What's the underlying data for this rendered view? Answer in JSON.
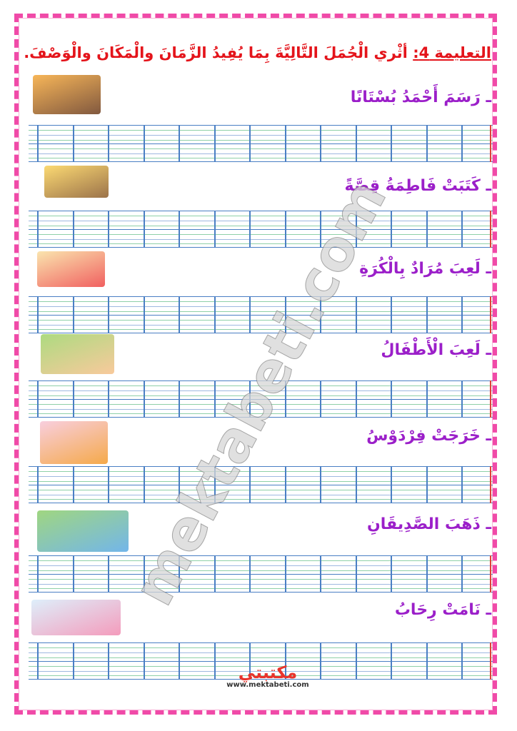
{
  "instruction": {
    "label": "التعليمة 4:",
    "text": " أثْري الْجُمَلَ التَّالِيَّةَ بِمَا يُفِيدُ الزَّمَانَ والْمَكَانَ والْوَصْفَ."
  },
  "sentences": [
    {
      "text": "ـ رَسَمَ أَحْمَدُ بُسْتَانًا",
      "picture": "boy-at-computer"
    },
    {
      "text": "ـ كَتَبَتْ فَاطِمَةُ قِصَّةً",
      "picture": "girl-writing"
    },
    {
      "text": "ـ لَعِبَ مُرَادٌ بِالْكُرَةِ",
      "picture": "boy-with-ball"
    },
    {
      "text": "ـ لَعِبَ الْأَطْفَالُ",
      "picture": "children-playing"
    },
    {
      "text": "ـ خَرَجَتْ فِرْدَوْسُ",
      "picture": "girl-walking"
    },
    {
      "text": "ـ ذَهَبَ الصَّدِيقَانِ",
      "picture": "two-friends-in-park"
    },
    {
      "text": "ـ نَامَتْ رِحَابُ",
      "picture": "girl-sleeping"
    }
  ],
  "watermark": "mektabeti.com",
  "footer": {
    "brand": "مكتبتي",
    "url": "www.mektabeti.com"
  },
  "colors": {
    "border": "#f04aa8",
    "title": "#e4141b",
    "sentence": "#9b1fc9",
    "grid_blue": "#4a7fc4",
    "grid_green": "#8fd0a8",
    "margin_red": "#e0403a"
  }
}
